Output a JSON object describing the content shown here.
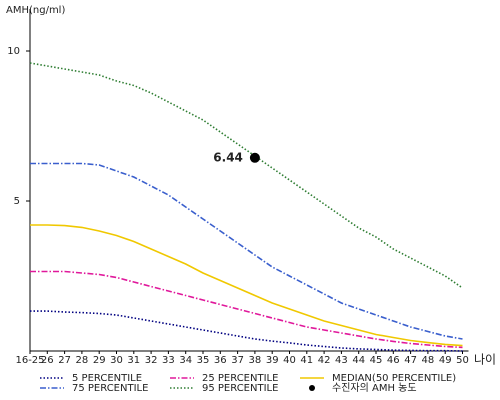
{
  "chart_data": {
    "type": "line",
    "y_label": "AMH(ng/ml)",
    "x_label": "나이",
    "categories": [
      "16-25",
      "26",
      "27",
      "28",
      "29",
      "30",
      "31",
      "32",
      "33",
      "34",
      "35",
      "36",
      "37",
      "38",
      "39",
      "40",
      "41",
      "42",
      "43",
      "44",
      "45",
      "46",
      "47",
      "48",
      "49",
      "50"
    ],
    "ylim": [
      0,
      11.4
    ],
    "yticks": [
      5,
      10
    ],
    "series": [
      {
        "name": "5 PERCENTILE",
        "color": "#000080",
        "style": "dotted",
        "values": [
          1.33,
          1.33,
          1.3,
          1.28,
          1.25,
          1.2,
          1.1,
          1.0,
          0.9,
          0.8,
          0.7,
          0.6,
          0.5,
          0.4,
          0.33,
          0.27,
          0.2,
          0.15,
          0.1,
          0.07,
          0.05,
          0.03,
          0.02,
          0.01,
          0.01,
          0
        ]
      },
      {
        "name": "75 PERCENTILE",
        "color": "#3a5fcd",
        "style": "dashdot",
        "values": [
          6.25,
          6.25,
          6.25,
          6.25,
          6.2,
          6.0,
          5.8,
          5.5,
          5.2,
          4.8,
          4.4,
          4.0,
          3.6,
          3.2,
          2.8,
          2.5,
          2.2,
          1.9,
          1.6,
          1.4,
          1.2,
          1.0,
          0.8,
          0.65,
          0.5,
          0.4
        ]
      },
      {
        "name": "25 PERCENTILE",
        "color": "#e0189b",
        "style": "dashdot",
        "values": [
          2.65,
          2.65,
          2.65,
          2.6,
          2.55,
          2.45,
          2.3,
          2.15,
          2.0,
          1.85,
          1.7,
          1.55,
          1.4,
          1.25,
          1.1,
          0.95,
          0.8,
          0.7,
          0.6,
          0.5,
          0.4,
          0.32,
          0.25,
          0.2,
          0.15,
          0.12
        ]
      },
      {
        "name": "95 PERCENTILE",
        "color": "#2e7d32",
        "style": "dotted",
        "values": [
          9.6,
          9.5,
          9.4,
          9.3,
          9.2,
          9.0,
          8.85,
          8.6,
          8.3,
          8.0,
          7.7,
          7.3,
          6.9,
          6.5,
          6.1,
          5.7,
          5.3,
          4.9,
          4.5,
          4.1,
          3.8,
          3.4,
          3.1,
          2.8,
          2.5,
          2.1
        ]
      },
      {
        "name": "MEDIAN(50 PERCENTILE)",
        "color": "#f0c800",
        "style": "solid",
        "values": [
          4.2,
          4.2,
          4.18,
          4.12,
          4.0,
          3.85,
          3.65,
          3.4,
          3.15,
          2.9,
          2.6,
          2.35,
          2.1,
          1.85,
          1.6,
          1.4,
          1.2,
          1.0,
          0.85,
          0.7,
          0.55,
          0.45,
          0.35,
          0.28,
          0.22,
          0.18
        ]
      }
    ],
    "marker": {
      "name": "수진자의 AMH 농도",
      "x": "38",
      "value": 6.44,
      "color": "#000000"
    }
  }
}
